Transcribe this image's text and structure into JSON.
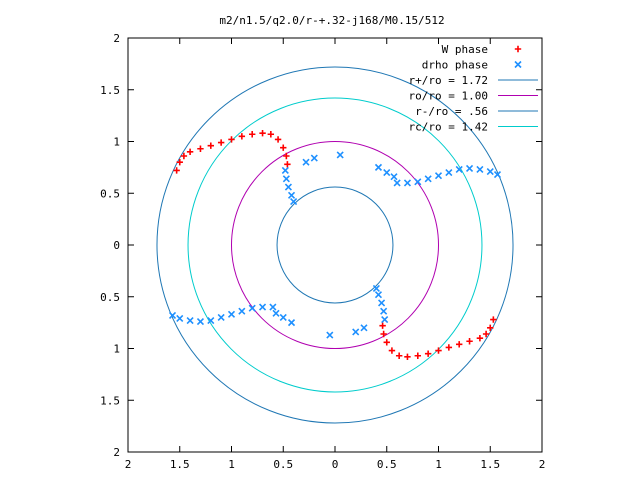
{
  "chart_data": {
    "type": "scatter",
    "title": "m2/n1.5/q2.0/r-+.32-j168/M0.15/512",
    "xlabel": "",
    "ylabel": "",
    "xlim": [
      -2,
      2
    ],
    "ylim": [
      -2,
      2
    ],
    "x_tick_labels": [
      "2",
      "1.5",
      "1",
      "0.5",
      "0",
      "0.5",
      "1",
      "1.5",
      "2"
    ],
    "y_tick_labels": [
      "2",
      "1.5",
      "1",
      "0.5",
      "0",
      "0.5",
      "1",
      "1.5",
      "2"
    ],
    "grid": false,
    "legend_position": "top-right",
    "series": [
      {
        "name": "W phase",
        "marker": "plus",
        "color": "#ff0000",
        "points": [
          [
            -1.53,
            0.72
          ],
          [
            -1.5,
            0.8
          ],
          [
            -1.46,
            0.86
          ],
          [
            -1.4,
            0.9
          ],
          [
            -1.3,
            0.93
          ],
          [
            -1.2,
            0.96
          ],
          [
            -1.1,
            0.99
          ],
          [
            -1.0,
            1.02
          ],
          [
            -0.9,
            1.05
          ],
          [
            -0.8,
            1.07
          ],
          [
            -0.7,
            1.08
          ],
          [
            -0.62,
            1.07
          ],
          [
            -0.55,
            1.02
          ],
          [
            -0.5,
            0.94
          ],
          [
            -0.47,
            0.86
          ],
          [
            -0.46,
            0.78
          ],
          [
            1.53,
            -0.72
          ],
          [
            1.5,
            -0.8
          ],
          [
            1.46,
            -0.86
          ],
          [
            1.4,
            -0.9
          ],
          [
            1.3,
            -0.93
          ],
          [
            1.2,
            -0.96
          ],
          [
            1.1,
            -0.99
          ],
          [
            1.0,
            -1.02
          ],
          [
            0.9,
            -1.05
          ],
          [
            0.8,
            -1.07
          ],
          [
            0.7,
            -1.08
          ],
          [
            0.62,
            -1.07
          ],
          [
            0.55,
            -1.02
          ],
          [
            0.5,
            -0.94
          ],
          [
            0.47,
            -0.86
          ],
          [
            0.46,
            -0.78
          ]
        ]
      },
      {
        "name": "drho phase",
        "marker": "cross",
        "color": "#1e90ff",
        "points": [
          [
            -0.48,
            0.72
          ],
          [
            -0.47,
            0.64
          ],
          [
            -0.45,
            0.56
          ],
          [
            -0.42,
            0.48
          ],
          [
            -0.4,
            0.42
          ],
          [
            -0.28,
            0.8
          ],
          [
            -0.2,
            0.84
          ],
          [
            0.05,
            0.87
          ],
          [
            0.42,
            0.75
          ],
          [
            0.5,
            0.7
          ],
          [
            0.57,
            0.66
          ],
          [
            0.6,
            0.6
          ],
          [
            0.7,
            0.6
          ],
          [
            0.8,
            0.61
          ],
          [
            0.9,
            0.64
          ],
          [
            1.0,
            0.67
          ],
          [
            1.1,
            0.7
          ],
          [
            1.2,
            0.73
          ],
          [
            1.3,
            0.74
          ],
          [
            1.4,
            0.73
          ],
          [
            1.5,
            0.71
          ],
          [
            1.57,
            0.68
          ],
          [
            0.48,
            -0.72
          ],
          [
            0.47,
            -0.64
          ],
          [
            0.45,
            -0.56
          ],
          [
            0.42,
            -0.48
          ],
          [
            0.4,
            -0.42
          ],
          [
            0.28,
            -0.8
          ],
          [
            0.2,
            -0.84
          ],
          [
            -0.05,
            -0.87
          ],
          [
            -0.42,
            -0.75
          ],
          [
            -0.5,
            -0.7
          ],
          [
            -0.57,
            -0.66
          ],
          [
            -0.6,
            -0.6
          ],
          [
            -0.7,
            -0.6
          ],
          [
            -0.8,
            -0.61
          ],
          [
            -0.9,
            -0.64
          ],
          [
            -1.0,
            -0.67
          ],
          [
            -1.1,
            -0.7
          ],
          [
            -1.2,
            -0.73
          ],
          [
            -1.3,
            -0.74
          ],
          [
            -1.4,
            -0.73
          ],
          [
            -1.5,
            -0.71
          ],
          [
            -1.57,
            -0.68
          ]
        ]
      },
      {
        "name": "r+/ro = 1.72",
        "type": "circle",
        "radius": 1.72,
        "color": "#1f77b4"
      },
      {
        "name": "ro/ro = 1.00",
        "type": "circle",
        "radius": 1.0,
        "color": "#b000b0"
      },
      {
        "name": "r-/ro = .56",
        "type": "circle",
        "radius": 0.56,
        "color": "#1f77b4"
      },
      {
        "name": "rc/ro = 1.42",
        "type": "circle",
        "radius": 1.42,
        "color": "#00cccc"
      }
    ]
  }
}
